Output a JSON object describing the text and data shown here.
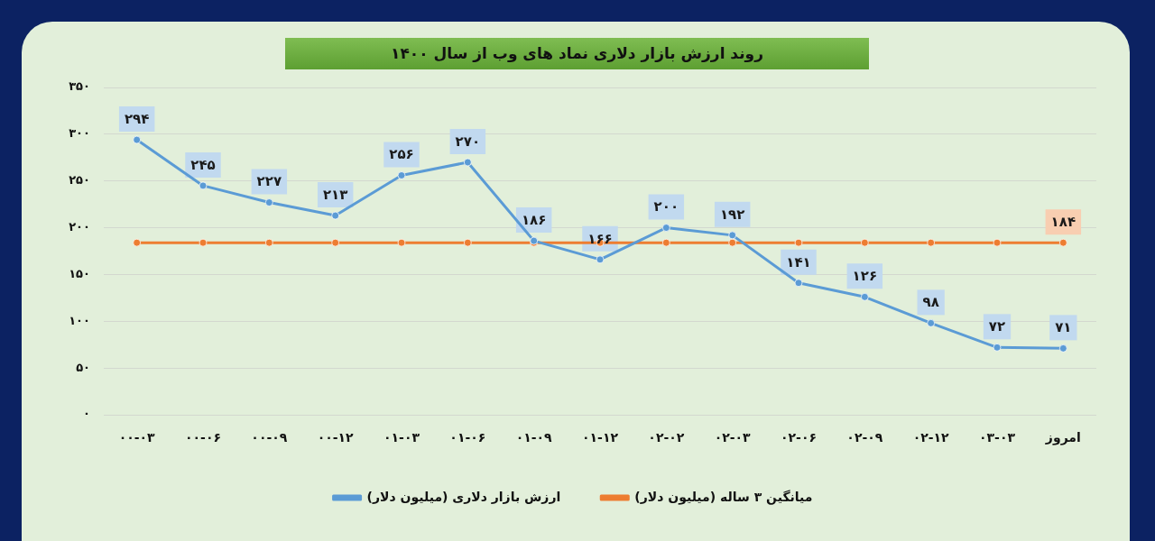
{
  "chart_data": {
    "type": "line",
    "title": "روند ارزش بازار دلاری نماد های وب از سال ۱۴۰۰",
    "categories": [
      "۰۰-۰۳",
      "۰۰-۰۶",
      "۰۰-۰۹",
      "۰۰-۱۲",
      "۰۱-۰۳",
      "۰۱-۰۶",
      "۰۱-۰۹",
      "۰۱-۱۲",
      "۰۲-۰۲",
      "۰۲-۰۳",
      "۰۲-۰۶",
      "۰۲-۰۹",
      "۰۲-۱۲",
      "۰۳-۰۳",
      "امروز"
    ],
    "series": [
      {
        "name": "ارزش بازار دلاری (میلیون دلار)",
        "color": "#5b9bd5",
        "values": [
          294,
          245,
          227,
          213,
          256,
          270,
          186,
          166,
          200,
          192,
          141,
          126,
          98,
          72,
          71
        ],
        "value_labels": [
          "۲۹۴",
          "۲۴۵",
          "۲۲۷",
          "۲۱۳",
          "۲۵۶",
          "۲۷۰",
          "۱۸۶",
          "۱۶۶",
          "۲۰۰",
          "۱۹۲",
          "۱۴۱",
          "۱۲۶",
          "۹۸",
          "۷۲",
          "۷۱"
        ]
      },
      {
        "name": "میانگین ۳ ساله (میلیون دلار)",
        "color": "#ed7d31",
        "values": [
          184,
          184,
          184,
          184,
          184,
          184,
          184,
          184,
          184,
          184,
          184,
          184,
          184,
          184,
          184
        ],
        "value_labels": [
          null,
          null,
          null,
          null,
          null,
          null,
          null,
          null,
          null,
          null,
          null,
          null,
          null,
          null,
          "۱۸۴"
        ]
      }
    ],
    "ylim": [
      0,
      350
    ],
    "yticks": [
      {
        "value": 0,
        "label": "۰"
      },
      {
        "value": 50,
        "label": "۵۰"
      },
      {
        "value": 100,
        "label": "۱۰۰"
      },
      {
        "value": 150,
        "label": "۱۵۰"
      },
      {
        "value": 200,
        "label": "۲۰۰"
      },
      {
        "value": 250,
        "label": "۲۵۰"
      },
      {
        "value": 300,
        "label": "۳۰۰"
      },
      {
        "value": 350,
        "label": "۳۵۰"
      }
    ],
    "grid": "y",
    "legend": "bottom",
    "marker": "circle",
    "line_style": "solid"
  }
}
